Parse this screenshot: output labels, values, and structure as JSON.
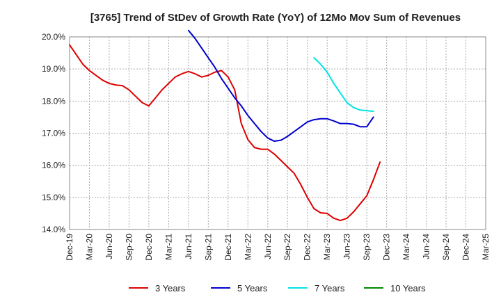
{
  "chart_data": {
    "type": "line",
    "title": "[3765]  Trend of StDev of Growth Rate (YoY) of 12Mo Mov Sum of Revenues",
    "xlabel": "",
    "ylabel": "",
    "ylim": [
      14.0,
      20.0
    ],
    "yticks": [
      14.0,
      15.0,
      16.0,
      17.0,
      18.0,
      19.0,
      20.0
    ],
    "yticks_labels": [
      "14.0%",
      "15.0%",
      "16.0%",
      "17.0%",
      "18.0%",
      "19.0%",
      "20.0%"
    ],
    "x_start": "2019-12",
    "x_end": "2025-03",
    "xtick_labels": [
      "Dec-19",
      "Mar-20",
      "Jun-20",
      "Sep-20",
      "Dec-20",
      "Mar-21",
      "Jun-21",
      "Sep-21",
      "Dec-21",
      "Mar-22",
      "Jun-22",
      "Sep-22",
      "Dec-22",
      "Mar-23",
      "Jun-23",
      "Sep-23",
      "Dec-23",
      "Mar-24",
      "Jun-24",
      "Sep-24",
      "Dec-24",
      "Mar-25"
    ],
    "grid": true,
    "legend_position": "bottom",
    "series": [
      {
        "name": "3 Years",
        "color": "#dd0000",
        "start_index": 0,
        "values": [
          19.75,
          19.45,
          19.15,
          18.95,
          18.8,
          18.65,
          18.55,
          18.5,
          18.48,
          18.35,
          18.15,
          17.95,
          17.85,
          18.1,
          18.35,
          18.55,
          18.75,
          18.85,
          18.92,
          18.85,
          18.75,
          18.8,
          18.9,
          18.95,
          18.75,
          18.35,
          17.3,
          16.8,
          16.55,
          16.5,
          16.5,
          16.35,
          16.15,
          15.95,
          15.75,
          15.4,
          15.0,
          14.65,
          14.52,
          14.5,
          14.35,
          14.28,
          14.35,
          14.55,
          14.8,
          15.05,
          15.55,
          16.1
        ]
      },
      {
        "name": "5 Years",
        "color": "#0000cc",
        "start_index": 18,
        "values": [
          20.2,
          19.95,
          19.65,
          19.35,
          19.05,
          18.7,
          18.4,
          18.1,
          17.85,
          17.55,
          17.3,
          17.05,
          16.85,
          16.75,
          16.78,
          16.9,
          17.05,
          17.2,
          17.35,
          17.42,
          17.45,
          17.45,
          17.38,
          17.3,
          17.3,
          17.28,
          17.2,
          17.2,
          17.5
        ]
      },
      {
        "name": "7 Years",
        "color": "#00e5e5",
        "start_index": 37,
        "values": [
          19.35,
          19.15,
          18.9,
          18.55,
          18.25,
          17.95,
          17.8,
          17.72,
          17.7,
          17.68
        ]
      },
      {
        "name": "10 Years",
        "color": "#008800",
        "start_index": 0,
        "values": []
      }
    ]
  }
}
